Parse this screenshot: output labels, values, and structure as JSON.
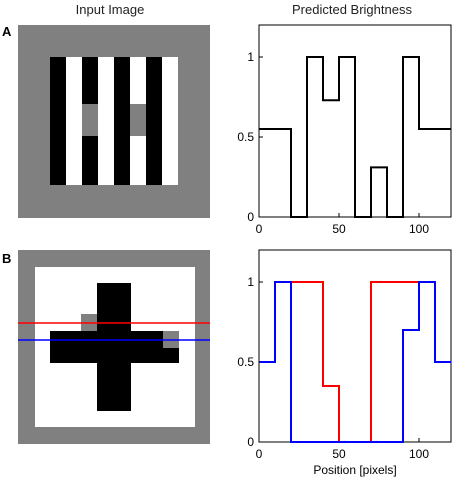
{
  "titles": {
    "left": "Input Image",
    "right": "Predicted Brightness"
  },
  "panels": {
    "a_label": "A",
    "b_label": "B"
  },
  "colors": {
    "gray": "#808080",
    "black": "#000000",
    "white": "#ffffff",
    "red": "#ff0000",
    "blue": "#0000ff"
  },
  "chart_data": [
    {
      "type": "line",
      "panel": "A",
      "title": "",
      "xlabel": "",
      "ylabel": "",
      "xlim": [
        0,
        120
      ],
      "ylim": [
        0,
        1.2
      ],
      "xticks": [
        0,
        50,
        100
      ],
      "yticks": [
        0,
        0.5,
        1
      ],
      "series": [
        {
          "color": "#000000",
          "x": [
            0,
            20,
            20,
            30,
            30,
            40,
            40,
            50,
            50,
            60,
            60,
            70,
            70,
            80,
            80,
            90,
            90,
            100,
            100,
            120
          ],
          "y": [
            0.55,
            0.55,
            0,
            0,
            1,
            1,
            0.73,
            0.73,
            1,
            1,
            0,
            0,
            0.31,
            0.31,
            0,
            0,
            1,
            1,
            0.55,
            0.55
          ]
        }
      ]
    },
    {
      "type": "line",
      "panel": "B",
      "title": "",
      "xlabel": "Position [pixels]",
      "ylabel": "",
      "xlim": [
        0,
        120
      ],
      "ylim": [
        0,
        1.2
      ],
      "xticks": [
        0,
        50,
        100
      ],
      "yticks": [
        0,
        0.5,
        1
      ],
      "series": [
        {
          "color": "#ff0000",
          "x": [
            10,
            20,
            30,
            40,
            40,
            50,
            50,
            70,
            70,
            80,
            90,
            100,
            110
          ],
          "y": [
            1,
            1,
            1,
            1,
            0.35,
            0.35,
            0,
            0,
            1,
            1,
            1,
            1,
            1
          ]
        },
        {
          "color": "#0000ff",
          "x": [
            0,
            10,
            10,
            20,
            20,
            90,
            90,
            100,
            100,
            110,
            110,
            120
          ],
          "y": [
            0.5,
            0.5,
            1,
            1,
            0,
            0,
            0.7,
            0.7,
            1,
            1,
            0.5,
            0.5
          ]
        }
      ]
    }
  ]
}
